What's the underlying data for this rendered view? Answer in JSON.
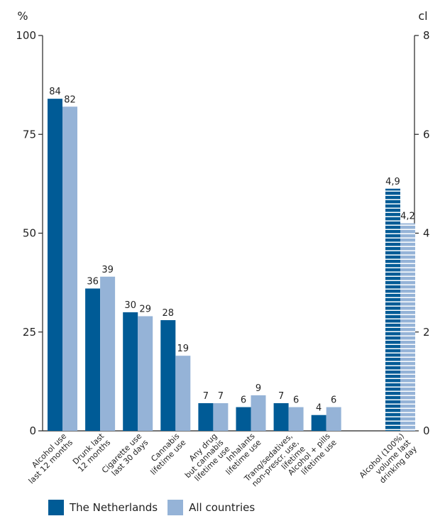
{
  "chart_data": {
    "type": "bar",
    "left_axis": {
      "unit": "%",
      "ticks": [
        "0",
        "25",
        "50",
        "75",
        "100"
      ],
      "ylim": [
        0,
        100
      ]
    },
    "right_axis": {
      "unit": "cl",
      "ticks": [
        "0",
        "2",
        "4",
        "6",
        "8"
      ],
      "ylim": [
        0,
        8
      ]
    },
    "categories": [
      [
        "Alcohol use",
        "last 12 months"
      ],
      [
        "Drunk last",
        "12 months"
      ],
      [
        "Cigarette use",
        "last 30 days"
      ],
      [
        "Cannabis",
        "lifetime use"
      ],
      [
        "Any drug",
        "but cannabis",
        "lifetime use"
      ],
      [
        "Inhalants",
        "lifetime use"
      ],
      [
        "Tranq/sedatives,",
        "non-prescr. use,",
        "lifetime"
      ],
      [
        "Alcohol + pills",
        "lifetime use"
      ]
    ],
    "series": [
      {
        "name": "The Netherlands",
        "color": "#005b96",
        "values": [
          84,
          36,
          30,
          28,
          7,
          6,
          7,
          4
        ],
        "labels": [
          "84",
          "36",
          "30",
          "28",
          "7",
          "6",
          "7",
          "4"
        ]
      },
      {
        "name": "All countries",
        "color": "#95b3d7",
        "values": [
          82,
          39,
          29,
          19,
          7,
          9,
          6,
          6
        ],
        "labels": [
          "82",
          "39",
          "29",
          "19",
          "7",
          "9",
          "6",
          "6"
        ]
      }
    ],
    "right_group": {
      "category": [
        "Alcohol (100%)",
        "volume last",
        "drinking day"
      ],
      "axis": "right",
      "pattern": "horizontal-stripes",
      "values": [
        4.9,
        4.2
      ],
      "labels": [
        "4,9",
        "4,2"
      ]
    },
    "grid": false,
    "legend_position": "bottom-left"
  },
  "legend": [
    {
      "label": "The Netherlands",
      "color": "#005b96"
    },
    {
      "label": "All countries",
      "color": "#95b3d7"
    }
  ]
}
